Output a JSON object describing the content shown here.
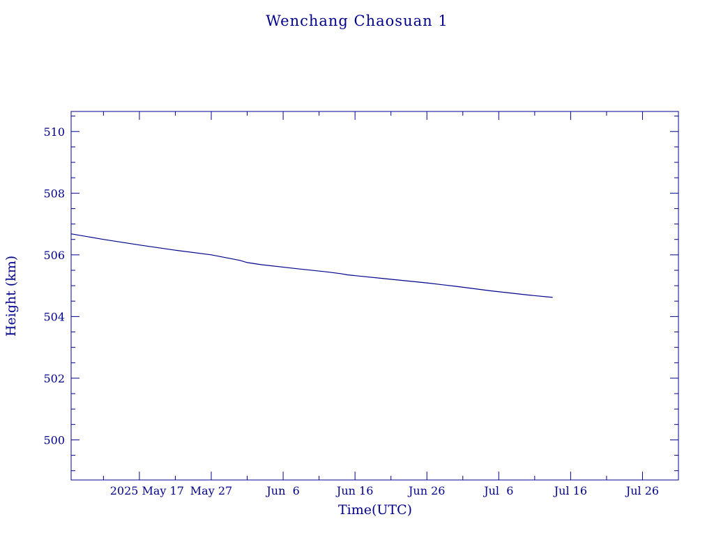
{
  "chart_data": {
    "type": "line",
    "title": "Wenchang Chaosuan 1",
    "xlabel": "Time(UTC)",
    "ylabel": "Height (km)",
    "x_ticks": [
      {
        "date": "2025-05-17",
        "label": "2025 May 17"
      },
      {
        "date": "2025-05-27",
        "label": "May 27"
      },
      {
        "date": "2025-06-06",
        "label": "Jun  6"
      },
      {
        "date": "2025-06-16",
        "label": "Jun 16"
      },
      {
        "date": "2025-06-26",
        "label": "Jun 26"
      },
      {
        "date": "2025-07-06",
        "label": "Jul  6"
      },
      {
        "date": "2025-07-16",
        "label": "Jul 16"
      },
      {
        "date": "2025-07-26",
        "label": "Jul 26"
      }
    ],
    "y_ticks": [
      500,
      502,
      504,
      506,
      508,
      510
    ],
    "xlim": [
      "2025-05-07T12:00",
      "2025-07-31T00:00"
    ],
    "ylim": [
      498.7,
      510.65
    ],
    "grid": false,
    "color": "#00008b",
    "series": [
      {
        "x": [
          "2025-05-07T12:00",
          "2025-05-12",
          "2025-05-17",
          "2025-05-22",
          "2025-05-27",
          "2025-05-29",
          "2025-05-31",
          "2025-06-01",
          "2025-06-03",
          "2025-06-08",
          "2025-06-12",
          "2025-06-14",
          "2025-06-15",
          "2025-06-20",
          "2025-06-26",
          "2025-06-30",
          "2025-07-05",
          "2025-07-10",
          "2025-07-13T12:00"
        ],
        "y": [
          506.68,
          506.5,
          506.32,
          506.15,
          506.0,
          505.91,
          505.82,
          505.75,
          505.68,
          505.55,
          505.45,
          505.39,
          505.35,
          505.23,
          505.09,
          504.98,
          504.83,
          504.7,
          504.62
        ]
      }
    ]
  }
}
